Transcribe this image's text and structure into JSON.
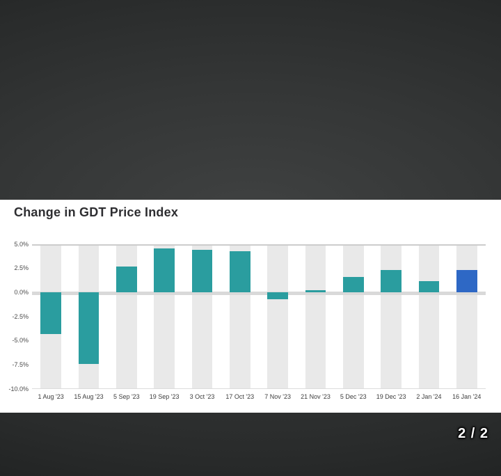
{
  "page": {
    "indicator": "2 / 2"
  },
  "chart": {
    "title": "Change in GDT Price Index"
  },
  "chart_data": {
    "type": "bar",
    "title": "Change in GDT Price Index",
    "categories": [
      "1 Aug '23",
      "15 Aug '23",
      "5 Sep '23",
      "19 Sep '23",
      "3 Oct '23",
      "17 Oct '23",
      "7 Nov '23",
      "21 Nov '23",
      "5 Dec '23",
      "19 Dec '23",
      "2 Jan '24",
      "16 Jan '24"
    ],
    "values": [
      -4.3,
      -7.4,
      2.7,
      4.6,
      4.4,
      4.3,
      -0.7,
      0.0,
      1.6,
      2.3,
      1.2,
      2.3
    ],
    "xlabel": "",
    "ylabel": "",
    "ylim": [
      -10.0,
      5.0
    ],
    "yticks": [
      "5.0%",
      "2.5%",
      "0.0%",
      "-2.5%",
      "-5.0%",
      "-7.5%",
      "-10.0%"
    ],
    "grid": "off",
    "legend": "none",
    "bar_color": "#2a9d9f",
    "highlight_color": "#2e68c5",
    "highlight_index": 11,
    "band_color": "#e9e9e9",
    "zero_line_color": "#d9d9d9"
  }
}
